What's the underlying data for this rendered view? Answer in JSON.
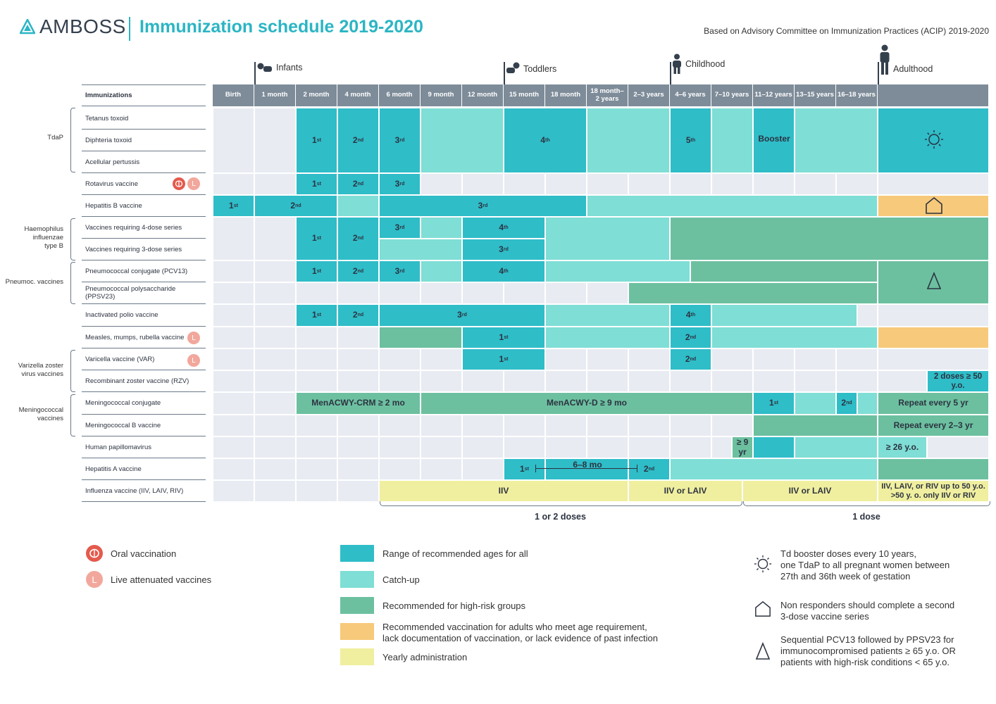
{
  "header": {
    "brand": "AMBOSS",
    "title": "Immunization schedule 2019-2020",
    "source": "Based on Advisory Committee on Immunization Practices (ACIP) 2019-2020"
  },
  "age_groups": [
    "Infants",
    "Toddlers",
    "Childhood",
    "Adulthood"
  ],
  "columns": {
    "label_header": "Immunizations",
    "ages": [
      "Birth",
      "1 month",
      "2 month",
      "4 month",
      "6 month",
      "9 month",
      "12 month",
      "15 month",
      "18 month",
      "18 month–\n2 years",
      "2–3 years",
      "4–6 years",
      "7–10 years",
      "11–12 years",
      "13–15 years",
      "16–18 years",
      ""
    ]
  },
  "groups": {
    "tdap": "TdaP",
    "hib": "Haemophilus\ninfluenzae\ntype B",
    "pneumoc": "Pneumoc. vaccines",
    "varicella": "Varizella zoster\nvirus vaccines",
    "mening": "Meningococcal\nvaccines"
  },
  "rows": [
    "Tetanus toxoid",
    "Diphteria toxoid",
    "Acellular pertussis",
    "Rotavirus vaccine",
    "Hepatitis B vaccine",
    "Vaccines requiring 4-dose series",
    "Vaccines requiring 3-dose series",
    "Pneumococcal conjugate (PCV13)",
    "Pneumococcal polysaccharide (PPSV23)",
    "Inactivated polio vaccine",
    "Measles, mumps, rubella vaccine",
    "Varicella vaccine (VAR)",
    "Recombinant zoster vaccine (RZV)",
    "Meningococcal conjugate",
    "Meningococcal B vaccine",
    "Human papillomavirus",
    "Hepatitis A vaccine",
    "Influenza vaccine (IIV, LAIV, RIV)"
  ],
  "cell_text": {
    "menacwy_crm": "MenACWY-CRM ≥ 2 mo",
    "menacwy_d": "MenACWY-D ≥ 9 mo",
    "repeat5": "Repeat every 5 yr",
    "repeat23": "Repeat every 2–3 yr",
    "rzv": "2 doses ≥ 50 y.o.",
    "hpv9": "≥ 9 yr",
    "hpv26": "≥ 26 y.o.",
    "hepa_interval": "6–8 mo",
    "booster": "Booster",
    "iiv": "IIV",
    "iiv_laiv_1": "IIV or LAIV",
    "iiv_laiv_2": "IIV or LAIV",
    "influenza_adult": "IIV, LAIV, or RIV up to 50 y.o.\n>50 y. o. only IIV or RIV"
  },
  "doses": {
    "one_or_two": "1 or 2 doses",
    "one": "1 dose"
  },
  "legend": {
    "oral": "Oral vaccination",
    "live": "Live attenuated vaccines",
    "live_letter": "L",
    "range_all": "Range of recommended ages for all",
    "catch_up": "Catch-up",
    "high_risk": "Recommended for high-risk groups",
    "adult_req": "Recommended vaccination for adults who meet age requirement,\nlack documentation of vaccination, or lack evidence of past infection",
    "yearly": "Yearly administration",
    "note_sun": "Td booster doses every 10 years,\none TdaP to all pregnant women between\n27th and 36th week of gestation",
    "note_house": "Non responders should complete a second\n3-dose vaccine series",
    "note_triangle": "Sequential PCV13 followed by PPSV23 for\nimmunocompromised patients ≥ 65 y.o. OR\npatients with high-risk conditions < 65 y.o."
  },
  "colors": {
    "range_all": "#2fbdc8",
    "catch_up": "#7fded5",
    "high_risk": "#6cc0a0",
    "adult_req": "#f7c97a",
    "yearly": "#f0ef9f",
    "empty": "#e8ebf2",
    "header": "#7e8c99",
    "brand": "#2bb5c4"
  },
  "icons": [
    "sun-icon",
    "house-icon",
    "triangle-icon",
    "oral-icon",
    "live-icon",
    "infant-icon",
    "toddler-icon",
    "child-icon",
    "adult-icon"
  ]
}
